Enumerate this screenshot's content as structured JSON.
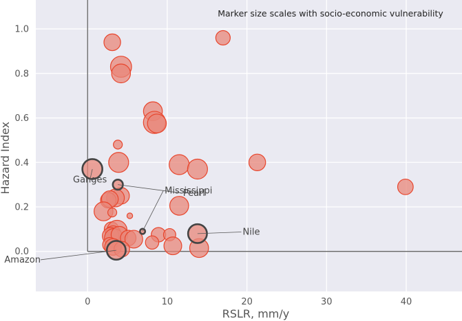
{
  "chart_data": {
    "type": "scatter",
    "xlabel": "RSLR, mm/y",
    "ylabel": "Hazard Index",
    "xlim": [
      -6.5,
      47
    ],
    "ylim": [
      -0.18,
      1.13
    ],
    "xticks": [
      "0",
      "10",
      "20",
      "30",
      "40"
    ],
    "xtick_values": [
      0,
      10,
      20,
      30,
      40
    ],
    "yticks": [
      "0.0",
      "0.2",
      "0.4",
      "0.6",
      "0.8",
      "1.0"
    ],
    "ytick_values": [
      0,
      0.2,
      0.4,
      0.6,
      0.8,
      1.0
    ],
    "grid": true,
    "note": "Marker size scales with socio-economic vulnerability",
    "colors": {
      "background": "#eaeaf2",
      "grid": "#ffffff",
      "marker_fill": "#e8877a",
      "marker_edge": "#e8452c",
      "highlight_edge": "#444444",
      "axis_line": "#555555"
    },
    "points": [
      {
        "x": 3.1,
        "y": 0.94,
        "v": 0.6
      },
      {
        "x": 17.0,
        "y": 0.96,
        "v": 0.5
      },
      {
        "x": 4.2,
        "y": 0.83,
        "v": 0.8
      },
      {
        "x": 4.2,
        "y": 0.8,
        "v": 0.7
      },
      {
        "x": 8.2,
        "y": 0.63,
        "v": 0.7
      },
      {
        "x": 8.4,
        "y": 0.58,
        "v": 0.85
      },
      {
        "x": 8.7,
        "y": 0.575,
        "v": 0.7
      },
      {
        "x": 3.8,
        "y": 0.48,
        "v": 0.25
      },
      {
        "x": 3.9,
        "y": 0.4,
        "v": 0.75
      },
      {
        "x": 11.5,
        "y": 0.39,
        "v": 0.75
      },
      {
        "x": 21.3,
        "y": 0.4,
        "v": 0.6
      },
      {
        "x": 13.8,
        "y": 0.37,
        "v": 0.75
      },
      {
        "x": 39.9,
        "y": 0.29,
        "v": 0.55
      },
      {
        "x": 4.2,
        "y": 0.25,
        "v": 0.6
      },
      {
        "x": 3.5,
        "y": 0.24,
        "v": 0.65
      },
      {
        "x": 2.6,
        "y": 0.23,
        "v": 0.55
      },
      {
        "x": 2.8,
        "y": 0.235,
        "v": 0.6
      },
      {
        "x": 11.5,
        "y": 0.205,
        "v": 0.7
      },
      {
        "x": 2.0,
        "y": 0.18,
        "v": 0.7
      },
      {
        "x": 3.1,
        "y": 0.175,
        "v": 0.25
      },
      {
        "x": 5.3,
        "y": 0.16,
        "v": 0.1
      },
      {
        "x": 3.0,
        "y": 0.1,
        "v": 0.5
      },
      {
        "x": 3.7,
        "y": 0.095,
        "v": 0.75
      },
      {
        "x": 3.2,
        "y": 0.08,
        "v": 0.55
      },
      {
        "x": 2.9,
        "y": 0.07,
        "v": 0.6
      },
      {
        "x": 3.3,
        "y": 0.06,
        "v": 0.7
      },
      {
        "x": 4.0,
        "y": 0.075,
        "v": 0.6
      },
      {
        "x": 5.1,
        "y": 0.06,
        "v": 0.55
      },
      {
        "x": 5.8,
        "y": 0.055,
        "v": 0.65
      },
      {
        "x": 8.9,
        "y": 0.075,
        "v": 0.5
      },
      {
        "x": 10.3,
        "y": 0.075,
        "v": 0.4
      },
      {
        "x": 8.1,
        "y": 0.04,
        "v": 0.45
      },
      {
        "x": 10.7,
        "y": 0.025,
        "v": 0.65
      },
      {
        "x": 2.8,
        "y": 0.03,
        "v": 0.5
      },
      {
        "x": 3.2,
        "y": 0.02,
        "v": 0.6
      },
      {
        "x": 4.3,
        "y": 0.01,
        "v": 0.55
      },
      {
        "x": 14.0,
        "y": 0.015,
        "v": 0.7
      }
    ],
    "highlighted": [
      {
        "name": "Ganges",
        "x": 0.6,
        "y": 0.37,
        "v": 0.75,
        "label_dx": -0.3,
        "label_dy": -0.06
      },
      {
        "name": "Pearl",
        "x": 3.8,
        "y": 0.3,
        "v": 0.3,
        "label_dx": 8.0,
        "label_dy": -0.05
      },
      {
        "name": "Mississippi",
        "x": 6.9,
        "y": 0.09,
        "v": 0.08,
        "label_dx": 2.6,
        "label_dy": 0.17
      },
      {
        "name": "Nile",
        "x": 13.8,
        "y": 0.08,
        "v": 0.7,
        "label_dx": 5.5,
        "label_dy": -0.005
      },
      {
        "name": "Amazon",
        "x": 3.6,
        "y": 0.005,
        "v": 0.7,
        "label_dx": -9.5,
        "label_dy": -0.055
      }
    ]
  }
}
